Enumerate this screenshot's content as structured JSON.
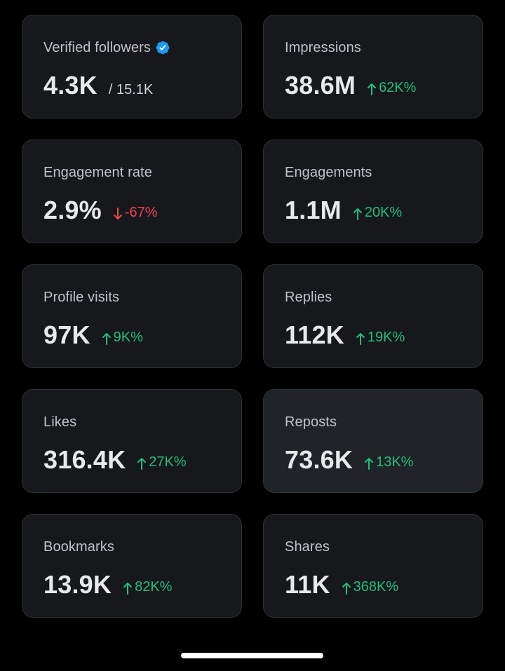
{
  "colors": {
    "background": "#000000",
    "card": "#16181c",
    "card_highlight": "#202327",
    "positive": "#1fbf7a",
    "negative": "#f0424f",
    "verified": "#1d9bf0"
  },
  "stats": [
    {
      "label": "Verified followers",
      "value": "4.3K",
      "subtotal": "/ 15.1K",
      "verified_icon": "verified-badge-icon"
    },
    {
      "label": "Impressions",
      "value": "38.6M",
      "delta": "62K%",
      "direction": "up",
      "arrow_icon": "arrow-up-icon"
    },
    {
      "label": "Engagement rate",
      "value": "2.9%",
      "delta": "-67%",
      "direction": "down",
      "arrow_icon": "arrow-down-icon"
    },
    {
      "label": "Engagements",
      "value": "1.1M",
      "delta": "20K%",
      "direction": "up",
      "arrow_icon": "arrow-up-icon"
    },
    {
      "label": "Profile visits",
      "value": "97K",
      "delta": "9K%",
      "direction": "up",
      "arrow_icon": "arrow-up-icon"
    },
    {
      "label": "Replies",
      "value": "112K",
      "delta": "19K%",
      "direction": "up",
      "arrow_icon": "arrow-up-icon"
    },
    {
      "label": "Likes",
      "value": "316.4K",
      "delta": "27K%",
      "direction": "up",
      "arrow_icon": "arrow-up-icon"
    },
    {
      "label": "Reposts",
      "value": "73.6K",
      "delta": "13K%",
      "direction": "up",
      "arrow_icon": "arrow-up-icon",
      "highlighted": true
    },
    {
      "label": "Bookmarks",
      "value": "13.9K",
      "delta": "82K%",
      "direction": "up",
      "arrow_icon": "arrow-up-icon"
    },
    {
      "label": "Shares",
      "value": "11K",
      "delta": "368K%",
      "direction": "up",
      "arrow_icon": "arrow-up-icon"
    }
  ]
}
